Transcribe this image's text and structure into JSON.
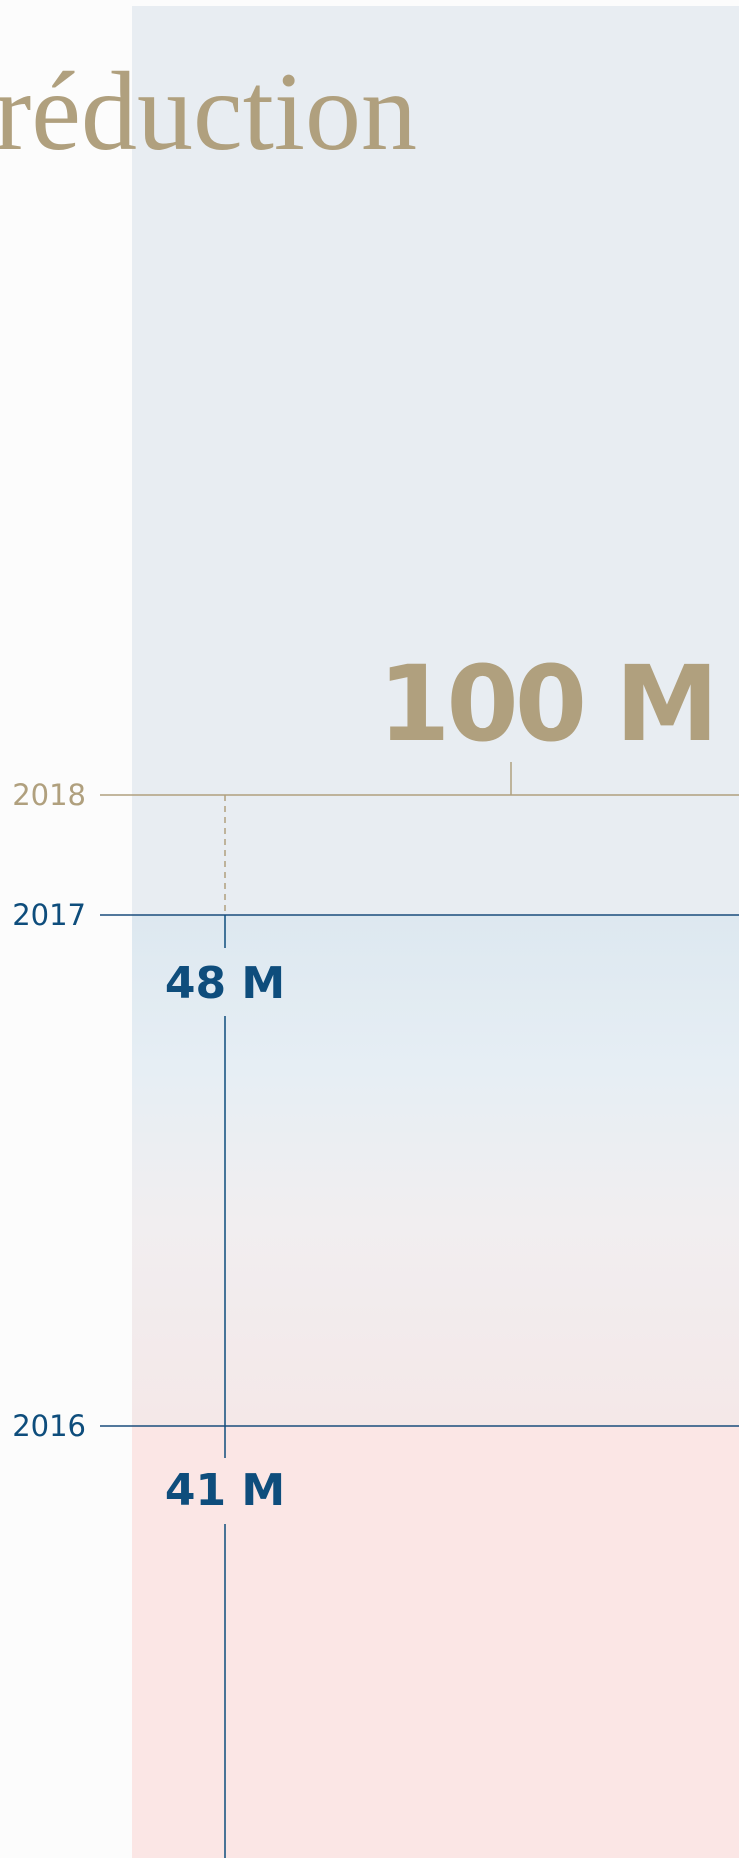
{
  "title": "réduction",
  "timeline": {
    "years": [
      "2018",
      "2017",
      "2016"
    ],
    "figures": [
      "100 M",
      "48 M",
      "41 M"
    ]
  }
}
